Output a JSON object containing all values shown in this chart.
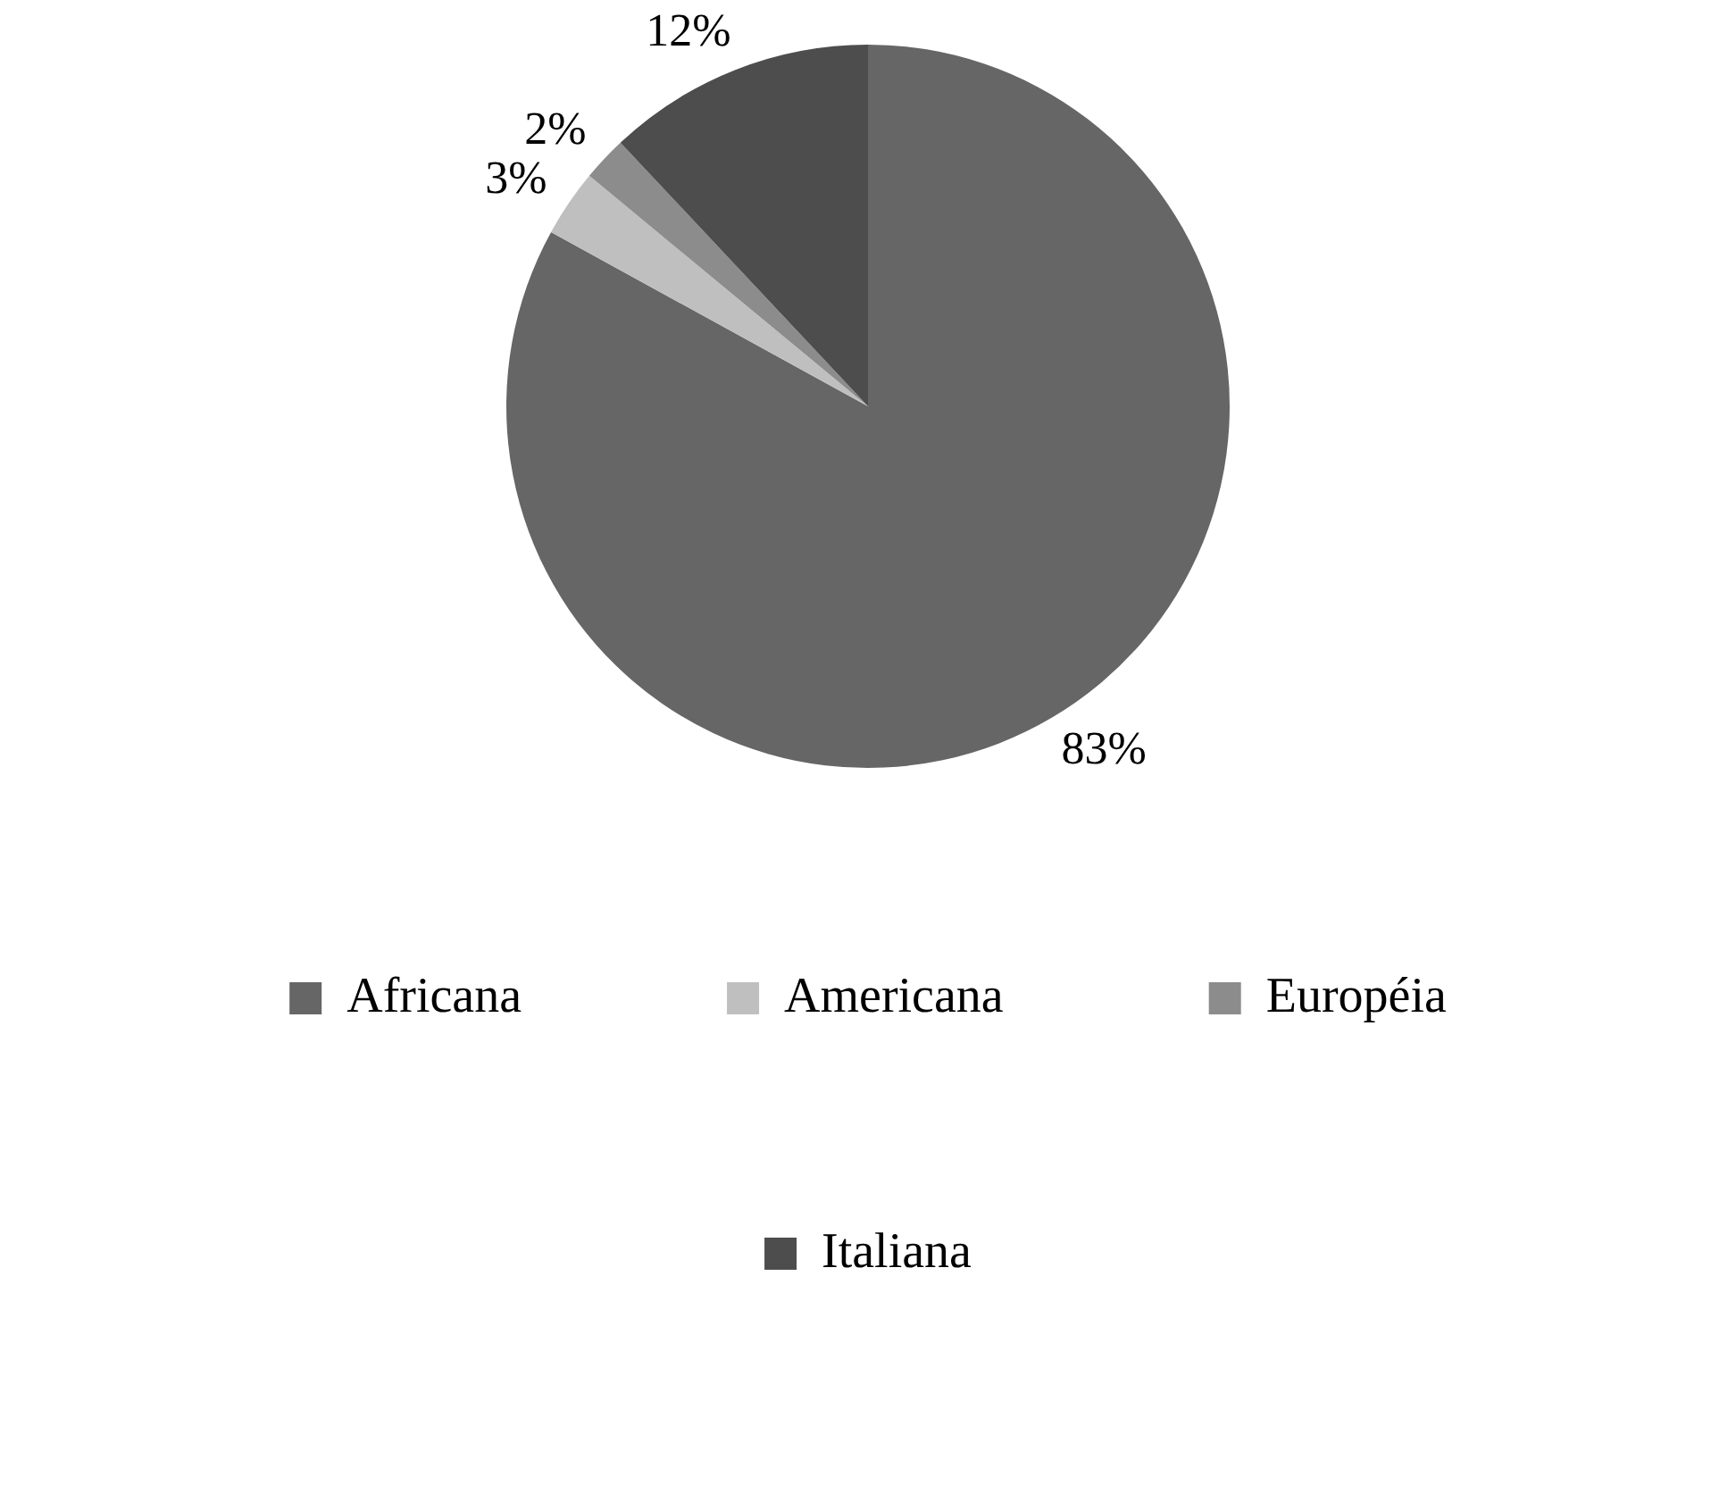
{
  "chart_data": {
    "type": "pie",
    "categories": [
      "Africana",
      "Americana",
      "Européia",
      "Italiana"
    ],
    "values": [
      83,
      3,
      2,
      12
    ],
    "colors": [
      "#666666",
      "#bfbfbf",
      "#8c8c8c",
      "#4d4d4d"
    ],
    "value_labels": [
      "83%",
      "3%",
      "2%",
      "12%"
    ],
    "legend": "bottom"
  }
}
